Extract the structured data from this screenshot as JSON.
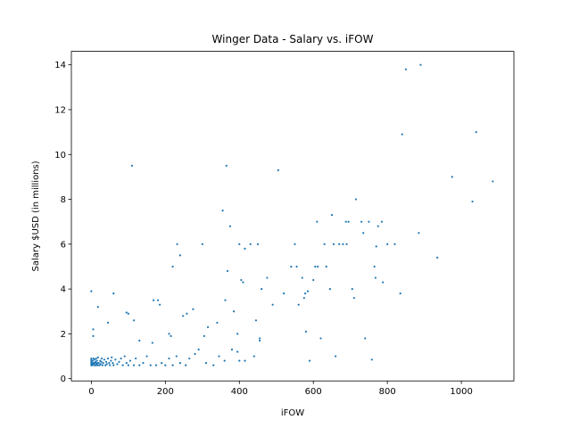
{
  "chart_data": {
    "type": "scatter",
    "title": "Winger Data - Salary vs. iFOW",
    "xlabel": "iFOW",
    "ylabel": "Salary $USD (in millions)",
    "xlim": [
      -54,
      1142
    ],
    "ylim": [
      -0.1,
      14.6
    ],
    "xticks": [
      0,
      200,
      400,
      600,
      800,
      1000
    ],
    "yticks": [
      0,
      2,
      4,
      6,
      8,
      10,
      12,
      14
    ],
    "grid": false,
    "legend": "none",
    "colors": {
      "point": "#1f77b4"
    },
    "series": [
      {
        "points": [
          [
            0,
            0.6
          ],
          [
            0,
            0.65
          ],
          [
            0,
            0.7
          ],
          [
            0,
            0.75
          ],
          [
            0,
            0.8
          ],
          [
            0,
            0.85
          ],
          [
            0,
            0.9
          ],
          [
            2,
            0.6
          ],
          [
            3,
            0.7
          ],
          [
            4,
            0.8
          ],
          [
            5,
            0.65
          ],
          [
            6,
            0.9
          ],
          [
            7,
            0.7
          ],
          [
            8,
            0.6
          ],
          [
            9,
            0.85
          ],
          [
            10,
            0.7
          ],
          [
            11,
            0.75
          ],
          [
            12,
            0.6
          ],
          [
            13,
            0.9
          ],
          [
            14,
            0.65
          ],
          [
            15,
            0.8
          ],
          [
            16,
            0.7
          ],
          [
            17,
            0.6
          ],
          [
            18,
            0.95
          ],
          [
            20,
            0.7
          ],
          [
            22,
            0.6
          ],
          [
            24,
            0.8
          ],
          [
            25,
            0.65
          ],
          [
            27,
            0.75
          ],
          [
            28,
            0.9
          ],
          [
            30,
            0.6
          ],
          [
            32,
            0.7
          ],
          [
            35,
            0.85
          ],
          [
            38,
            0.6
          ],
          [
            40,
            0.75
          ],
          [
            42,
            0.65
          ],
          [
            45,
            0.9
          ],
          [
            48,
            0.7
          ],
          [
            50,
            0.6
          ],
          [
            53,
            0.8
          ],
          [
            55,
            0.95
          ],
          [
            58,
            0.7
          ],
          [
            60,
            0.6
          ],
          [
            65,
            0.85
          ],
          [
            70,
            0.65
          ],
          [
            75,
            0.75
          ],
          [
            80,
            0.9
          ],
          [
            85,
            0.6
          ],
          [
            90,
            1.0
          ],
          [
            95,
            0.7
          ],
          [
            100,
            0.6
          ],
          [
            105,
            0.8
          ],
          [
            115,
            0.6
          ],
          [
            120,
            0.9
          ],
          [
            130,
            0.6
          ],
          [
            140,
            0.7
          ],
          [
            150,
            1.0
          ],
          [
            160,
            0.6
          ],
          [
            175,
            0.6
          ],
          [
            190,
            0.7
          ],
          [
            200,
            0.6
          ],
          [
            210,
            0.9
          ],
          [
            220,
            0.6
          ],
          [
            230,
            1.0
          ],
          [
            240,
            0.7
          ],
          [
            255,
            0.6
          ],
          [
            265,
            0.9
          ],
          [
            280,
            1.1
          ],
          [
            290,
            1.3
          ],
          [
            310,
            0.7
          ],
          [
            330,
            0.6
          ],
          [
            345,
            1.0
          ],
          [
            360,
            0.8
          ],
          [
            380,
            1.3
          ],
          [
            395,
            1.2
          ],
          [
            400,
            0.8
          ],
          [
            415,
            0.8
          ],
          [
            440,
            1.0
          ],
          [
            455,
            1.8
          ],
          [
            5,
            1.9
          ],
          [
            5,
            2.2
          ],
          [
            0,
            3.9
          ],
          [
            18,
            3.2
          ],
          [
            45,
            2.5
          ],
          [
            60,
            3.8
          ],
          [
            95,
            2.95
          ],
          [
            100,
            2.9
          ],
          [
            110,
            9.5
          ],
          [
            115,
            2.6
          ],
          [
            130,
            1.7
          ],
          [
            165,
            1.6
          ],
          [
            168,
            3.5
          ],
          [
            180,
            3.5
          ],
          [
            185,
            3.3
          ],
          [
            210,
            2.0
          ],
          [
            215,
            1.9
          ],
          [
            220,
            5.0
          ],
          [
            232,
            6.0
          ],
          [
            240,
            5.5
          ],
          [
            248,
            2.8
          ],
          [
            258,
            2.9
          ],
          [
            275,
            3.1
          ],
          [
            300,
            6.0
          ],
          [
            305,
            1.9
          ],
          [
            315,
            2.3
          ],
          [
            340,
            2.5
          ],
          [
            355,
            7.5
          ],
          [
            362,
            3.5
          ],
          [
            365,
            9.5
          ],
          [
            368,
            4.8
          ],
          [
            375,
            6.8
          ],
          [
            385,
            3.0
          ],
          [
            395,
            2.0
          ],
          [
            400,
            6.0
          ],
          [
            405,
            4.4
          ],
          [
            410,
            4.3
          ],
          [
            415,
            5.8
          ],
          [
            430,
            6.0
          ],
          [
            445,
            2.6
          ],
          [
            450,
            6.0
          ],
          [
            455,
            1.7
          ],
          [
            460,
            4.0
          ],
          [
            475,
            4.5
          ],
          [
            490,
            3.3
          ],
          [
            505,
            9.3
          ],
          [
            520,
            3.8
          ],
          [
            540,
            5.0
          ],
          [
            550,
            6.0
          ],
          [
            555,
            5.0
          ],
          [
            560,
            3.3
          ],
          [
            570,
            4.5
          ],
          [
            575,
            3.6
          ],
          [
            578,
            3.8
          ],
          [
            580,
            2.1
          ],
          [
            585,
            3.9
          ],
          [
            590,
            0.8
          ],
          [
            600,
            4.4
          ],
          [
            605,
            5.0
          ],
          [
            610,
            7.0
          ],
          [
            612,
            5.0
          ],
          [
            620,
            1.8
          ],
          [
            630,
            6.0
          ],
          [
            635,
            5.0
          ],
          [
            645,
            4.0
          ],
          [
            650,
            7.3
          ],
          [
            655,
            6.0
          ],
          [
            660,
            1.0
          ],
          [
            670,
            6.0
          ],
          [
            680,
            6.0
          ],
          [
            688,
            7.0
          ],
          [
            690,
            6.0
          ],
          [
            695,
            7.0
          ],
          [
            705,
            4.0
          ],
          [
            710,
            3.6
          ],
          [
            715,
            8.0
          ],
          [
            730,
            7.0
          ],
          [
            735,
            6.5
          ],
          [
            740,
            1.8
          ],
          [
            750,
            7.0
          ],
          [
            758,
            0.85
          ],
          [
            765,
            5.0
          ],
          [
            768,
            4.5
          ],
          [
            770,
            5.9
          ],
          [
            775,
            6.8
          ],
          [
            785,
            7.0
          ],
          [
            788,
            4.3
          ],
          [
            800,
            6.0
          ],
          [
            820,
            6.0
          ],
          [
            835,
            3.8
          ],
          [
            840,
            10.9
          ],
          [
            850,
            13.8
          ],
          [
            885,
            6.5
          ],
          [
            890,
            14.0
          ],
          [
            935,
            5.4
          ],
          [
            975,
            9.0
          ],
          [
            1030,
            7.9
          ],
          [
            1040,
            11.0
          ],
          [
            1085,
            8.8
          ]
        ]
      }
    ]
  }
}
